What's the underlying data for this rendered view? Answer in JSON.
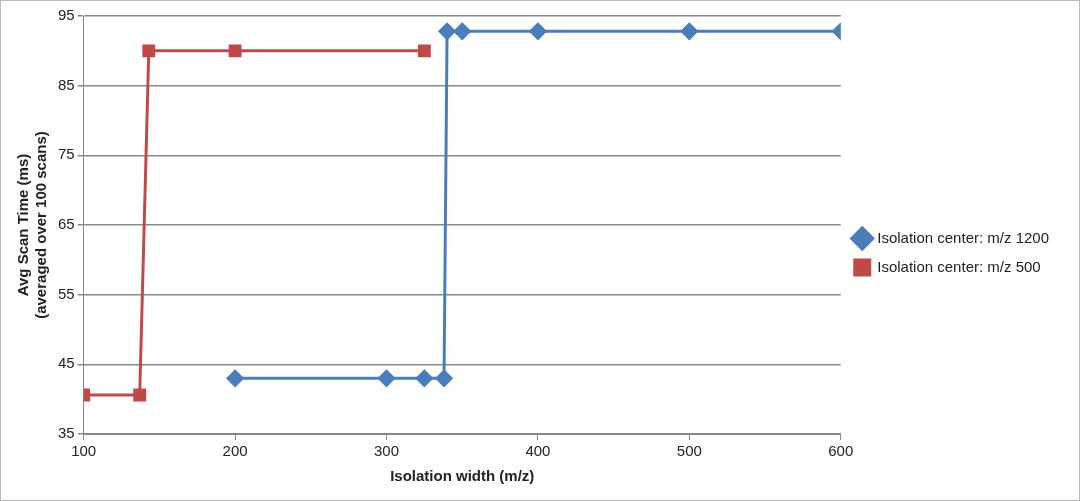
{
  "chart_data": {
    "type": "line",
    "xlabel": "Isolation width (m/z)",
    "ylabel": "Avg Scan Time (ms)\n(averaged over 100 scans)",
    "xlim": [
      100,
      600
    ],
    "xticks": [
      100,
      200,
      300,
      400,
      500,
      600
    ],
    "ylim": [
      35,
      95
    ],
    "yticks": [
      35,
      45,
      55,
      65,
      75,
      85,
      95
    ],
    "grid": "y",
    "legend": "right",
    "line_style": "solid",
    "series": [
      {
        "name": "Isolation center: m/z 1200",
        "color": "#4a7ebb",
        "marker": "diamond",
        "x": [
          200,
          300,
          325,
          338,
          340,
          350,
          400,
          500,
          600
        ],
        "values": [
          43,
          43,
          43,
          43,
          92.8,
          92.8,
          92.8,
          92.8,
          92.8
        ]
      },
      {
        "name": "Isolation center: m/z 500",
        "color": "#be4b48",
        "marker": "square",
        "x": [
          100,
          137,
          143,
          200,
          325
        ],
        "values": [
          40.6,
          40.6,
          90,
          90,
          90
        ]
      }
    ]
  }
}
